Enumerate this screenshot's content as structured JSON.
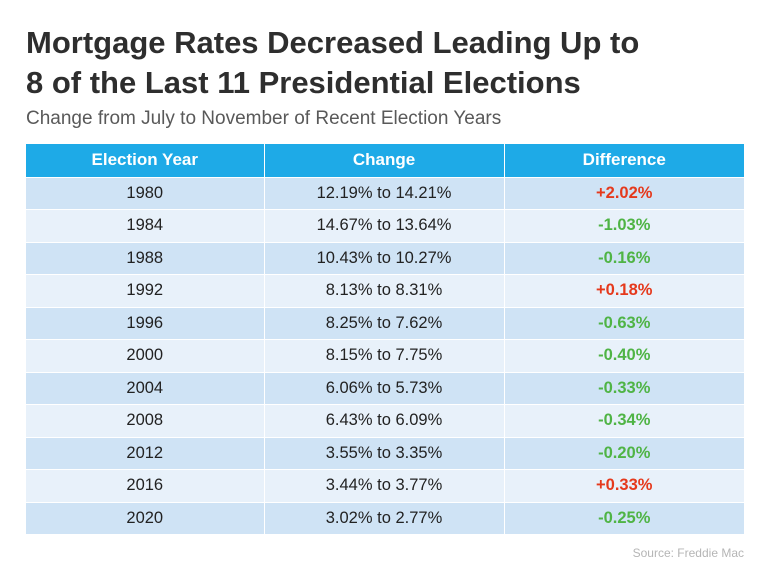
{
  "title_line1": "Mortgage Rates Decreased Leading Up to",
  "title_line2": "8 of the Last 11 Presidential Elections",
  "subtitle": "Change from July to November of Recent Election Years",
  "source": "Source:  Freddie Mac",
  "colors": {
    "header": "#1eaae7",
    "increase": "#e5391c",
    "decrease": "#4fb445"
  },
  "chart_data": {
    "type": "table",
    "columns": [
      "Election Year",
      "Change",
      "Difference"
    ],
    "rows": [
      {
        "year": "1980",
        "change": "12.19% to 14.21%",
        "difference": "+2.02%"
      },
      {
        "year": "1984",
        "change": "14.67% to 13.64%",
        "difference": "-1.03%"
      },
      {
        "year": "1988",
        "change": "10.43% to 10.27%",
        "difference": "-0.16%"
      },
      {
        "year": "1992",
        "change": "8.13% to 8.31%",
        "difference": "+0.18%"
      },
      {
        "year": "1996",
        "change": "8.25% to 7.62%",
        "difference": "-0.63%"
      },
      {
        "year": "2000",
        "change": "8.15% to 7.75%",
        "difference": "-0.40%"
      },
      {
        "year": "2004",
        "change": "6.06% to 5.73%",
        "difference": "-0.33%"
      },
      {
        "year": "2008",
        "change": "6.43% to 6.09%",
        "difference": "-0.34%"
      },
      {
        "year": "2012",
        "change": "3.55% to 3.35%",
        "difference": "-0.20%"
      },
      {
        "year": "2016",
        "change": "3.44% to 3.77%",
        "difference": "+0.33%"
      },
      {
        "year": "2020",
        "change": "3.02% to 2.77%",
        "difference": "-0.25%"
      }
    ]
  }
}
